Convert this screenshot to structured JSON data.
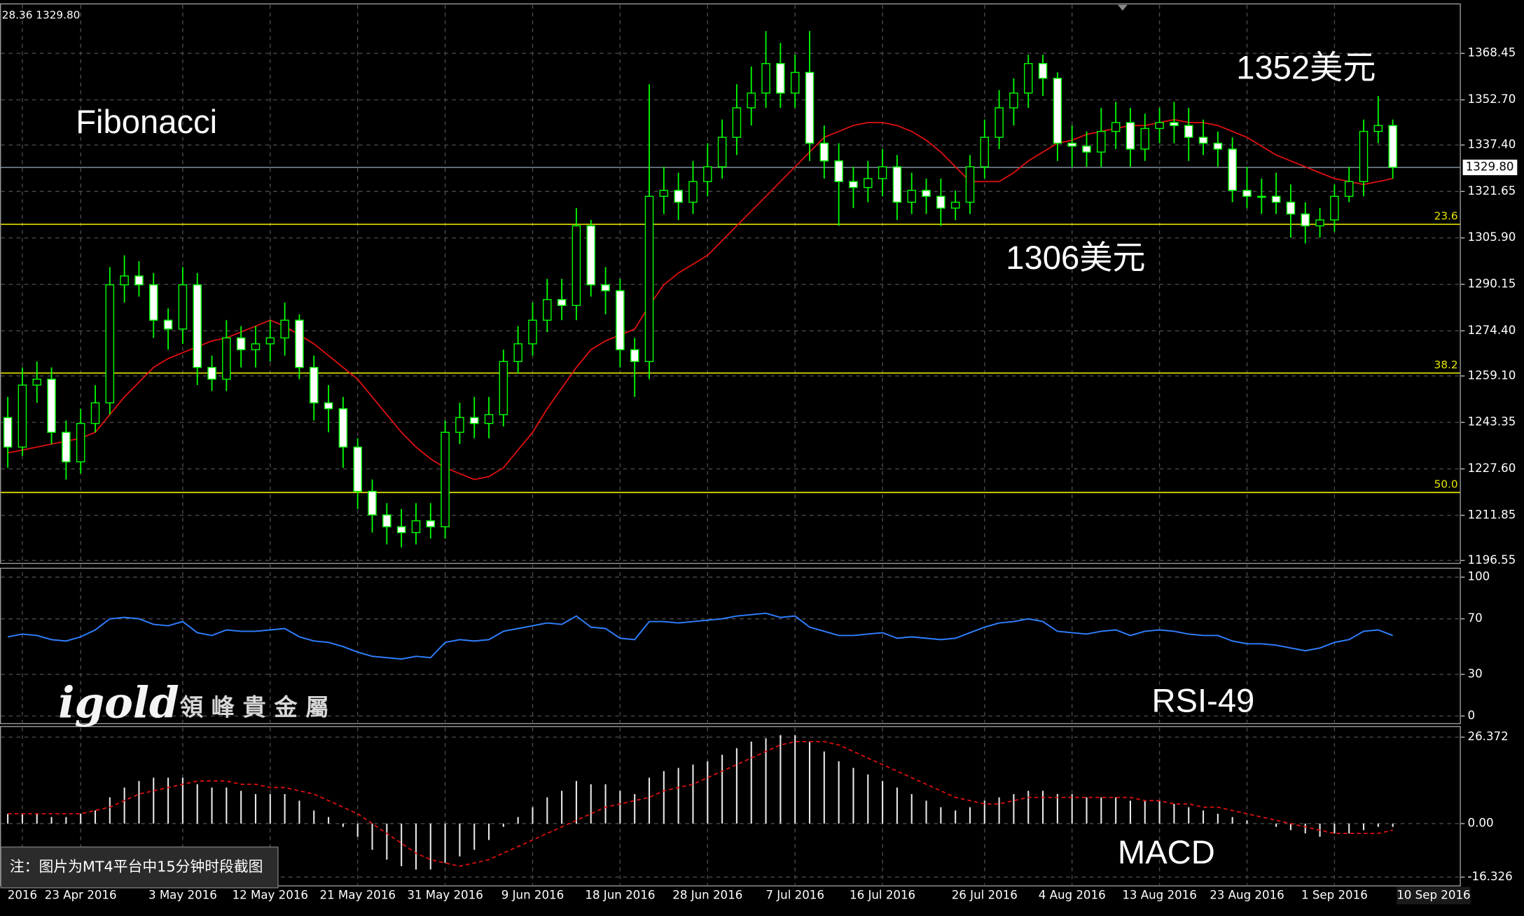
{
  "corner_text": "28.36 1329.80",
  "watermark": {
    "logo": "igold",
    "name": "領 峰 貴 金 屬"
  },
  "footnote": "注：图片为MT4平台中15分钟时段截图",
  "chart_data": [
    {
      "type": "candlestick",
      "categories": [
        null,
        "2016",
        null,
        null,
        null,
        "23 Apr 2016",
        null,
        null,
        null,
        null,
        null,
        null,
        "3 May 2016",
        null,
        null,
        null,
        null,
        null,
        "12 May 2016",
        null,
        null,
        null,
        null,
        null,
        "21 May 2016",
        null,
        null,
        null,
        null,
        null,
        "31 May 2016",
        null,
        null,
        null,
        null,
        null,
        "9 Jun 2016",
        null,
        null,
        null,
        null,
        null,
        "18 Jun 2016",
        null,
        null,
        null,
        null,
        null,
        "28 Jun 2016",
        null,
        null,
        null,
        null,
        null,
        "7 Jul 2016",
        null,
        null,
        null,
        null,
        null,
        "16 Jul 2016",
        null,
        null,
        null,
        null,
        null,
        null,
        "26 Jul 2016",
        null,
        null,
        null,
        null,
        null,
        "4 Aug 2016",
        null,
        null,
        null,
        null,
        null,
        "13 Aug 2016",
        null,
        null,
        null,
        null,
        null,
        "23 Aug 2016",
        null,
        null,
        null,
        null,
        null,
        "1 Sep 2016",
        null,
        null,
        null,
        null
      ],
      "x_end_label": "10 Sep 2016",
      "open": [
        1245,
        1235,
        1256,
        1258,
        1240,
        1230,
        1243,
        1250,
        1290,
        1293,
        1290,
        1278,
        1275,
        1290,
        1262,
        1258,
        1272,
        1268,
        1270,
        1272,
        1278,
        1262,
        1250,
        1248,
        1235,
        1220,
        1212,
        1208,
        1206,
        1210,
        1208,
        1240,
        1245,
        1243,
        1246,
        1264,
        1270,
        1278,
        1285,
        1283,
        1310,
        1290,
        1288,
        1268,
        1264,
        1320,
        1322,
        1318,
        1325,
        1330,
        1340,
        1350,
        1355,
        1365,
        1355,
        1362,
        1338,
        1332,
        1325,
        1323,
        1326,
        1330,
        1318,
        1322,
        1320,
        1316,
        1318,
        1330,
        1340,
        1350,
        1355,
        1365,
        1360,
        1338,
        1337,
        1335,
        1342,
        1345,
        1336,
        1343,
        1345,
        1344,
        1340,
        1338,
        1336,
        1322,
        1320,
        1320,
        1318,
        1314,
        1310,
        1312,
        1320,
        1325,
        1342,
        1344
      ],
      "high": [
        1252,
        1262,
        1264,
        1262,
        1244,
        1248,
        1256,
        1296,
        1300,
        1298,
        1294,
        1282,
        1296,
        1294,
        1266,
        1278,
        1276,
        1276,
        1278,
        1284,
        1280,
        1266,
        1256,
        1252,
        1238,
        1224,
        1216,
        1214,
        1216,
        1216,
        1244,
        1250,
        1252,
        1252,
        1268,
        1276,
        1284,
        1292,
        1292,
        1316,
        1312,
        1296,
        1292,
        1272,
        1358,
        1330,
        1328,
        1332,
        1338,
        1346,
        1358,
        1364,
        1376,
        1372,
        1368,
        1376,
        1344,
        1338,
        1330,
        1332,
        1336,
        1334,
        1328,
        1326,
        1326,
        1322,
        1334,
        1346,
        1356,
        1360,
        1368,
        1368,
        1362,
        1344,
        1342,
        1350,
        1352,
        1350,
        1348,
        1350,
        1352,
        1350,
        1346,
        1342,
        1340,
        1330,
        1326,
        1328,
        1324,
        1318,
        1316,
        1324,
        1330,
        1346,
        1354,
        1346
      ],
      "low": [
        1228,
        1232,
        1250,
        1236,
        1224,
        1226,
        1240,
        1246,
        1284,
        1286,
        1272,
        1268,
        1270,
        1256,
        1254,
        1254,
        1262,
        1262,
        1264,
        1266,
        1258,
        1244,
        1240,
        1228,
        1214,
        1206,
        1202,
        1201,
        1202,
        1204,
        1204,
        1236,
        1238,
        1238,
        1242,
        1260,
        1266,
        1274,
        1278,
        1278,
        1286,
        1280,
        1262,
        1252,
        1258,
        1314,
        1312,
        1314,
        1320,
        1326,
        1334,
        1344,
        1350,
        1350,
        1350,
        1332,
        1326,
        1310,
        1316,
        1318,
        1320,
        1312,
        1314,
        1314,
        1310,
        1312,
        1314,
        1326,
        1336,
        1344,
        1350,
        1354,
        1332,
        1330,
        1330,
        1330,
        1336,
        1330,
        1332,
        1338,
        1338,
        1332,
        1334,
        1330,
        1318,
        1316,
        1314,
        1314,
        1306,
        1304,
        1306,
        1308,
        1318,
        1320,
        1338,
        1326
      ],
      "close": [
        1235,
        1256,
        1258,
        1240,
        1230,
        1243,
        1250,
        1290,
        1293,
        1290,
        1278,
        1275,
        1290,
        1262,
        1258,
        1272,
        1268,
        1270,
        1272,
        1278,
        1262,
        1250,
        1248,
        1235,
        1220,
        1212,
        1208,
        1206,
        1210,
        1208,
        1240,
        1245,
        1243,
        1246,
        1264,
        1270,
        1278,
        1285,
        1283,
        1310,
        1290,
        1288,
        1268,
        1264,
        1320,
        1322,
        1318,
        1325,
        1330,
        1340,
        1350,
        1355,
        1365,
        1355,
        1362,
        1338,
        1332,
        1325,
        1323,
        1326,
        1330,
        1318,
        1322,
        1320,
        1316,
        1318,
        1330,
        1340,
        1350,
        1355,
        1365,
        1360,
        1338,
        1337,
        1335,
        1342,
        1345,
        1336,
        1343,
        1345,
        1344,
        1340,
        1338,
        1336,
        1322,
        1320,
        1320,
        1318,
        1314,
        1310,
        1312,
        1320,
        1325,
        1342,
        1344,
        1329.8
      ],
      "up_color": "#000000",
      "down_color": "#ffffff",
      "wick_color": "#00ff00",
      "ma": {
        "color": "#e01010",
        "values": [
          1233,
          1234,
          1235,
          1236,
          1237,
          1238,
          1240,
          1246,
          1252,
          1257,
          1262,
          1265,
          1267,
          1269,
          1271,
          1272,
          1274,
          1276,
          1278,
          1276,
          1273,
          1270,
          1266,
          1262,
          1258,
          1252,
          1246,
          1240,
          1235,
          1231,
          1228,
          1226,
          1224,
          1225,
          1228,
          1234,
          1240,
          1248,
          1255,
          1262,
          1268,
          1271,
          1273,
          1275,
          1283,
          1290,
          1294,
          1297,
          1300,
          1305,
          1310,
          1315,
          1320,
          1325,
          1330,
          1335,
          1340,
          1342,
          1344,
          1345,
          1345,
          1344,
          1342,
          1339,
          1335,
          1330,
          1325,
          1325,
          1325,
          1328,
          1332,
          1335,
          1338,
          1339,
          1341,
          1342,
          1343,
          1344,
          1344,
          1345,
          1346,
          1345,
          1345,
          1344,
          1342,
          1340,
          1337,
          1334,
          1332,
          1330,
          1328,
          1326,
          1325,
          1324,
          1325,
          1326
        ]
      },
      "ylim": [
        1195.5,
        1385
      ],
      "yticks": [
        1368.45,
        {
          "value": 1352.7,
          "label": "1352.70"
        },
        {
          "value": 1337.4,
          "label": "1337.40"
        },
        1321.65,
        {
          "value": 1305.9,
          "label": "1305.90"
        },
        1290.15,
        {
          "value": 1274.4,
          "label": "1274.40"
        },
        {
          "value": 1259.1,
          "label": "1259.10"
        },
        1243.35,
        {
          "value": 1227.6,
          "label": "1227.60"
        },
        1211.85,
        1196.55
      ],
      "grid": true,
      "fib_color": "#e6e600",
      "fib_levels": [
        {
          "label": "23.6",
          "value": 1310.5
        },
        {
          "label": "38.2",
          "value": 1260.1
        },
        {
          "label": "50.0",
          "value": 1219.6
        }
      ],
      "last_price": {
        "value": 1329.8,
        "label": "1329.80"
      },
      "annotations": [
        "Fibonacci",
        "1352美元",
        "1306美元"
      ]
    },
    {
      "type": "line",
      "label": "RSI-49",
      "color": "#2f7fff",
      "values": [
        57,
        59,
        58,
        55,
        54,
        57,
        62,
        70,
        71,
        70,
        66,
        65,
        68,
        60,
        58,
        62,
        61,
        61,
        62,
        63,
        57,
        54,
        53,
        50,
        46,
        43,
        42,
        41,
        43,
        42,
        53,
        55,
        54,
        55,
        61,
        63,
        65,
        67,
        66,
        72,
        64,
        63,
        56,
        55,
        68,
        68,
        67,
        68,
        69,
        70,
        72,
        73,
        74,
        71,
        72,
        64,
        61,
        58,
        58,
        59,
        60,
        56,
        57,
        56,
        55,
        56,
        60,
        64,
        67,
        68,
        70,
        68,
        61,
        60,
        59,
        61,
        62,
        58,
        61,
        62,
        61,
        59,
        58,
        58,
        54,
        52,
        52,
        51,
        49,
        47,
        49,
        53,
        55,
        61,
        62,
        58
      ],
      "ylim": [
        -5.5,
        105
      ],
      "yticks": [
        100,
        70,
        30,
        0
      ],
      "grid": true
    },
    {
      "type": "macd",
      "label": "MACD",
      "histogram": {
        "color": "#e8e8e8",
        "values": [
          3,
          3,
          3,
          2,
          2,
          3,
          4,
          8,
          11,
          13,
          14,
          14,
          14,
          12,
          11,
          11,
          10,
          9,
          9,
          9,
          7,
          4,
          2,
          -1,
          -4,
          -8,
          -11,
          -13,
          -14,
          -14,
          -12,
          -10,
          -8,
          -5,
          -1,
          2,
          5,
          8,
          10,
          13,
          12,
          12,
          10,
          9,
          14,
          16,
          17,
          18,
          19,
          21,
          23,
          25,
          26,
          27,
          27,
          25,
          22,
          19,
          17,
          15,
          13,
          11,
          9,
          7,
          5,
          4,
          5,
          7,
          8,
          9,
          10,
          10,
          9,
          9,
          8,
          8,
          8,
          7,
          7,
          7,
          6,
          5,
          4,
          3,
          2,
          1,
          0,
          -1,
          -2,
          -3,
          -4,
          -3,
          -3,
          -2,
          -1,
          -1
        ]
      },
      "signal": {
        "color": "#e01010",
        "values": [
          3,
          3,
          3,
          3,
          3,
          3,
          4,
          5,
          7,
          9,
          10,
          11,
          12,
          13,
          13,
          13,
          12,
          12,
          11,
          11,
          10,
          9,
          7,
          5,
          3,
          0,
          -3,
          -6,
          -9,
          -11,
          -12,
          -13,
          -12,
          -11,
          -9,
          -7,
          -5,
          -3,
          -1,
          1,
          3,
          5,
          6,
          7,
          8,
          10,
          11,
          12,
          14,
          16,
          18,
          20,
          22,
          24,
          25,
          25,
          25,
          24,
          22,
          20,
          18,
          16,
          14,
          12,
          10,
          8,
          7,
          6,
          6,
          7,
          8,
          8,
          8,
          8,
          8,
          8,
          8,
          8,
          7,
          7,
          6,
          6,
          5,
          5,
          4,
          3,
          2,
          1,
          0,
          -1,
          -2,
          -3,
          -3,
          -3,
          -3,
          -2
        ]
      },
      "ylim": [
        -19,
        29
      ],
      "yticks": [
        26.372,
        {
          "value": 0,
          "label": "0.00"
        },
        -16.326
      ],
      "grid": true
    }
  ]
}
